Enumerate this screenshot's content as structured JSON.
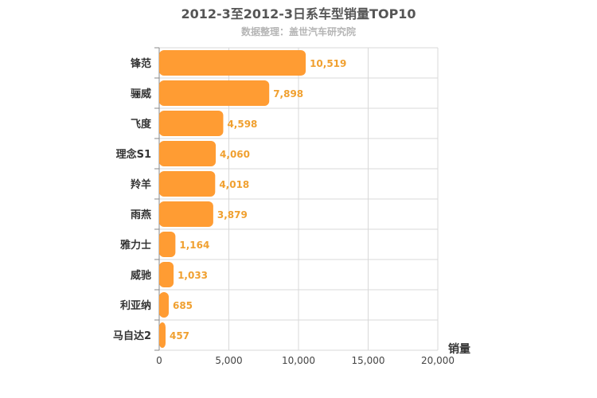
{
  "title": "2012-3至2012-3日系车型销量TOP10",
  "subtitle": "数据整理：盖世汽车研究院",
  "colors": {
    "bar": "#ff9c33",
    "value_label": "#f0a030",
    "grid": "#d8d8d8",
    "axis": "#888888"
  },
  "chart_data": {
    "type": "bar",
    "orientation": "horizontal",
    "title": "2012-3至2012-3日系车型销量TOP10",
    "subtitle": "数据整理：盖世汽车研究院",
    "categories": [
      "锋范",
      "骊威",
      "飞度",
      "理念S1",
      "羚羊",
      "雨燕",
      "雅力士",
      "威驰",
      "利亚纳",
      "马自达2"
    ],
    "values": [
      10519,
      7898,
      4598,
      4060,
      4018,
      3879,
      1164,
      1033,
      685,
      457
    ],
    "value_labels": [
      "10,519",
      "7,898",
      "4,598",
      "4,060",
      "4,018",
      "3,879",
      "1,164",
      "1,033",
      "685",
      "457"
    ],
    "xlabel": "销量",
    "ylabel": "",
    "xlim": [
      0,
      20000
    ],
    "xticks": [
      0,
      5000,
      10000,
      15000,
      20000
    ],
    "xtick_labels": [
      "0",
      "5,000",
      "10,000",
      "15,000",
      "20,000"
    ],
    "grid": true,
    "legend": "none"
  }
}
